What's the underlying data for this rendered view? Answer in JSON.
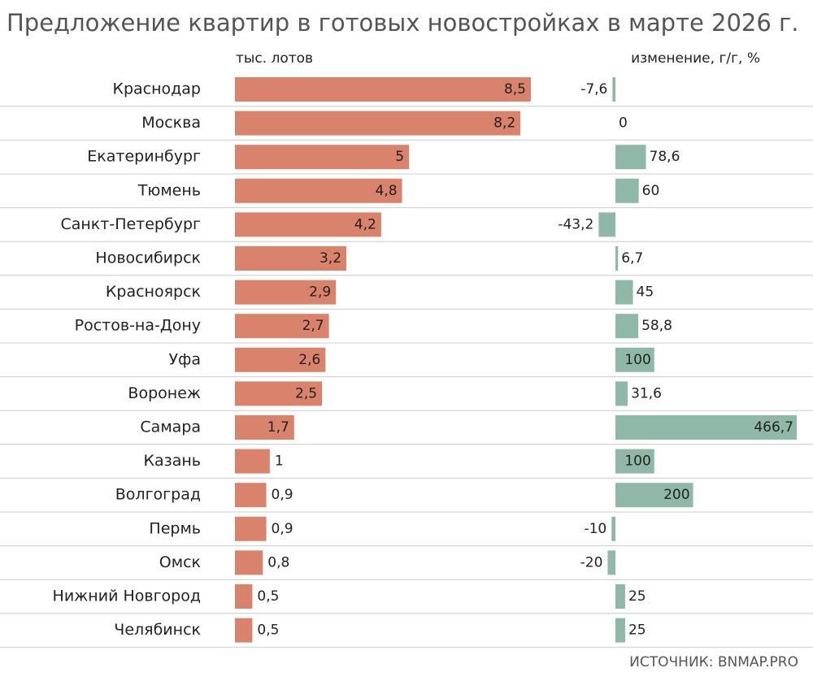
{
  "chart_data": {
    "type": "bar",
    "title": "Предложение квартир в готовых новостройках в марте 2026 г.",
    "source": "ИСТОЧНИК: BNMAP.PRO",
    "categories": [
      "Краснодар",
      "Москва",
      "Екатеринбург",
      "Тюмень",
      "Санкт-Петербург",
      "Новосибирск",
      "Красноярск",
      "Ростов-на-Дону",
      "Уфа",
      "Воронеж",
      "Самара",
      "Казань",
      "Волгоград",
      "Пермь",
      "Омск",
      "Нижний Новгород",
      "Челябинск"
    ],
    "series": [
      {
        "name": "тыс. лотов",
        "color": "#d9826c",
        "values": [
          8.5,
          8.2,
          5,
          4.8,
          4.2,
          3.2,
          2.9,
          2.7,
          2.6,
          2.5,
          1.7,
          1,
          0.9,
          0.9,
          0.8,
          0.5,
          0.5
        ],
        "value_labels": [
          "8,5",
          "8,2",
          "5",
          "4,8",
          "4,2",
          "3,2",
          "2,9",
          "2,7",
          "2,6",
          "2,5",
          "1,7",
          "1",
          "0,9",
          "0,9",
          "0,8",
          "0,5",
          "0,5"
        ]
      },
      {
        "name": "изменение, г/г, %",
        "color": "#8fb8a8",
        "values": [
          -7.6,
          0,
          78.6,
          60,
          -43.2,
          6.7,
          45,
          58.8,
          100,
          31.6,
          466.7,
          100,
          200,
          -10,
          -20,
          25,
          25
        ],
        "value_labels": [
          "-7,6",
          "0",
          "78,6",
          "60",
          "-43,2",
          "6,7",
          "45",
          "58,8",
          "100",
          "31,6",
          "466,7",
          "100",
          "200",
          "-10",
          "-20",
          "25",
          "25"
        ]
      }
    ]
  }
}
